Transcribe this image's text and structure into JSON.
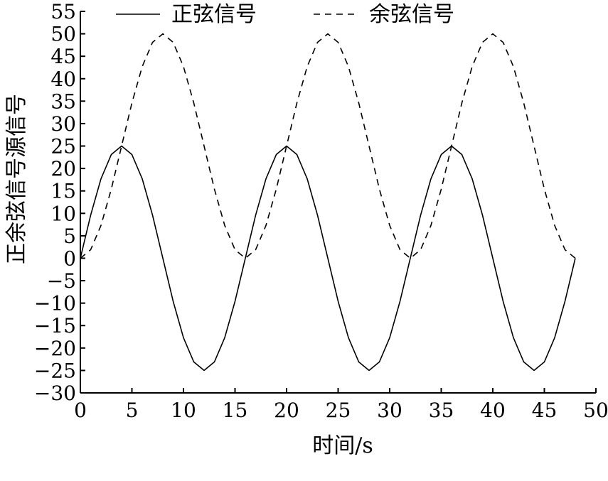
{
  "chart_data": {
    "type": "line",
    "xlabel": "时间/s",
    "ylabel": "正余弦信号源信号",
    "xlim": [
      0,
      50
    ],
    "ylim": [
      -30,
      55
    ],
    "xticks": [
      0,
      5,
      10,
      15,
      20,
      25,
      30,
      35,
      40,
      45,
      50
    ],
    "yticks": [
      -30,
      -25,
      -20,
      -15,
      -10,
      -5,
      0,
      5,
      10,
      15,
      20,
      25,
      30,
      35,
      40,
      45,
      50,
      55
    ],
    "grid": false,
    "legend_position": "top",
    "series": [
      {
        "name": "正弦信号",
        "line_style": "solid",
        "color": "#000000",
        "x": [
          0,
          1,
          2,
          3,
          4,
          5,
          6,
          7,
          8,
          9,
          10,
          11,
          12,
          13,
          14,
          15,
          16,
          17,
          18,
          19,
          20,
          21,
          22,
          23,
          24,
          25,
          26,
          27,
          28,
          29,
          30,
          31,
          32,
          33,
          34,
          35,
          36,
          37,
          38,
          39,
          40,
          41,
          42,
          43,
          44,
          45,
          46,
          47,
          48
        ],
        "y": [
          0,
          9.6,
          17.7,
          23.1,
          25,
          23.1,
          17.7,
          9.6,
          0,
          -9.6,
          -17.7,
          -23.1,
          -25,
          -23.1,
          -17.7,
          -9.6,
          0,
          9.6,
          17.7,
          23.1,
          25,
          23.1,
          17.7,
          9.6,
          0,
          -9.6,
          -17.7,
          -23.1,
          -25,
          -23.1,
          -17.7,
          -9.6,
          0,
          9.6,
          17.7,
          23.1,
          25,
          23.1,
          17.7,
          9.6,
          0,
          -9.6,
          -17.7,
          -23.1,
          -25,
          -23.1,
          -17.7,
          -9.6,
          0
        ]
      },
      {
        "name": "余弦信号",
        "line_style": "dashed",
        "color": "#000000",
        "x": [
          0,
          1,
          2,
          3,
          4,
          5,
          6,
          7,
          8,
          9,
          10,
          11,
          12,
          13,
          14,
          15,
          16,
          17,
          18,
          19,
          20,
          21,
          22,
          23,
          24,
          25,
          26,
          27,
          28,
          29,
          30,
          31,
          32,
          33,
          34,
          35,
          36,
          37,
          38,
          39,
          40,
          41,
          42,
          43,
          44,
          45,
          46,
          47,
          48
        ],
        "y": [
          0,
          1.9,
          7.3,
          15.4,
          25,
          34.6,
          42.7,
          48.1,
          50,
          48.1,
          42.7,
          34.6,
          25,
          15.4,
          7.3,
          1.9,
          0,
          1.9,
          7.3,
          15.4,
          25,
          34.6,
          42.7,
          48.1,
          50,
          48.1,
          42.7,
          34.6,
          25,
          15.4,
          7.3,
          1.9,
          0,
          1.9,
          7.3,
          15.4,
          25,
          34.6,
          42.7,
          48.1,
          50,
          48.1,
          42.7,
          34.6,
          25,
          15.4,
          7.3,
          1.9,
          0
        ]
      }
    ]
  }
}
